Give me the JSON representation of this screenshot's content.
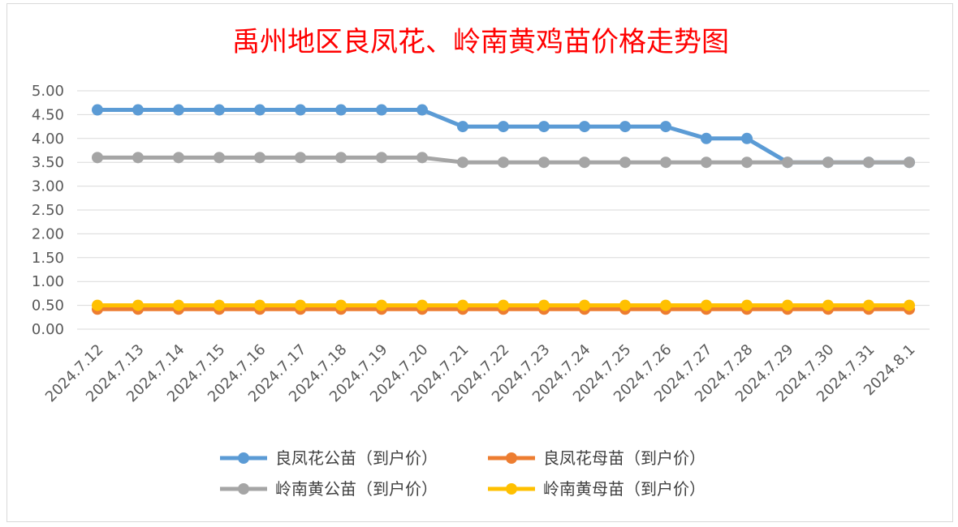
{
  "chart_data": {
    "type": "line",
    "title": "禹州地区良凤花、岭南黄鸡苗价格走势图",
    "xlabel": "",
    "ylabel": "",
    "ylim": [
      0,
      5
    ],
    "ytick_step": 0.5,
    "ytick_labels": [
      "0.00",
      "0.50",
      "1.00",
      "1.50",
      "2.00",
      "2.50",
      "3.00",
      "3.50",
      "4.00",
      "4.50",
      "5.00"
    ],
    "grid": true,
    "legend": "bottom",
    "x": [
      "2024.7.12",
      "2024.7.13",
      "2024.7.14",
      "2024.7.15",
      "2024.7.16",
      "2024.7.17",
      "2024.7.18",
      "2024.7.19",
      "2024.7.20",
      "2024.7.21",
      "2024.7.22",
      "2024.7.23",
      "2024.7.24",
      "2024.7.25",
      "2024.7.26",
      "2024.7.27",
      "2024.7.28",
      "2024.7.29",
      "2024.7.30",
      "2024.7.31",
      "2024.8.1"
    ],
    "series": [
      {
        "name": "良凤花公苗（到户价）",
        "color": "#5b9bd5",
        "values": [
          4.6,
          4.6,
          4.6,
          4.6,
          4.6,
          4.6,
          4.6,
          4.6,
          4.6,
          4.25,
          4.25,
          4.25,
          4.25,
          4.25,
          4.25,
          4.0,
          4.0,
          3.5,
          3.5,
          3.5,
          3.5
        ]
      },
      {
        "name": "良凤花母苗（到户价）",
        "color": "#ed7d31",
        "values": [
          0.42,
          0.42,
          0.42,
          0.42,
          0.42,
          0.42,
          0.42,
          0.42,
          0.42,
          0.42,
          0.42,
          0.42,
          0.42,
          0.42,
          0.42,
          0.42,
          0.42,
          0.42,
          0.42,
          0.42,
          0.42
        ]
      },
      {
        "name": "岭南黄公苗（到户价）",
        "color": "#a5a5a5",
        "values": [
          3.6,
          3.6,
          3.6,
          3.6,
          3.6,
          3.6,
          3.6,
          3.6,
          3.6,
          3.5,
          3.5,
          3.5,
          3.5,
          3.5,
          3.5,
          3.5,
          3.5,
          3.5,
          3.5,
          3.5,
          3.5
        ]
      },
      {
        "name": "岭南黄母苗（到户价）",
        "color": "#ffc000",
        "values": [
          0.5,
          0.5,
          0.5,
          0.5,
          0.5,
          0.5,
          0.5,
          0.5,
          0.5,
          0.5,
          0.5,
          0.5,
          0.5,
          0.5,
          0.5,
          0.5,
          0.5,
          0.5,
          0.5,
          0.5,
          0.5
        ]
      }
    ]
  }
}
